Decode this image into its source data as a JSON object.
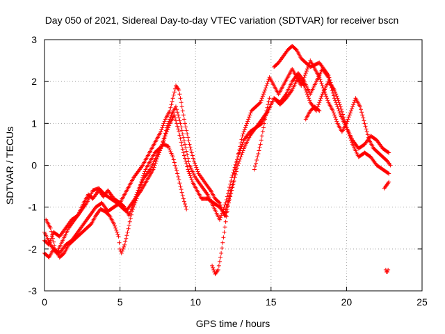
{
  "chart_data": {
    "type": "scatter",
    "title": "Day 050 of 2021, Sidereal Day-to-day VTEC variation (SDTVAR) for receiver bscn",
    "xlabel": "GPS time / hours",
    "ylabel": "SDTVAR / TECUs",
    "xlim": [
      0,
      25
    ],
    "ylim": [
      -3,
      3
    ],
    "xticks": [
      0,
      5,
      10,
      15,
      20,
      25
    ],
    "yticks": [
      -3,
      -2,
      -1,
      0,
      1,
      2,
      3
    ],
    "grid": true,
    "marker": "+",
    "color": "#ff0000",
    "traces": [
      {
        "x": [
          0.0,
          0.3,
          0.6,
          1.0,
          1.4,
          1.8,
          2.2,
          2.6,
          2.9,
          3.2,
          3.6,
          3.9,
          4.2,
          4.6,
          5.0,
          5.3,
          5.6,
          5.9,
          6.2,
          6.5,
          6.8,
          7.1,
          7.4,
          7.7,
          8.0,
          8.3,
          8.5,
          8.7,
          8.9,
          9.1,
          9.3,
          9.6,
          9.9,
          10.2,
          10.6,
          11.0,
          11.3,
          11.6,
          11.9,
          12.2,
          12.5,
          12.8,
          13.1,
          13.4,
          13.7,
          14.0,
          14.3,
          14.6,
          14.9,
          15.2,
          15.5,
          15.8,
          16.1,
          16.4,
          16.7,
          17.0,
          17.3,
          17.6,
          17.9,
          18.2,
          18.5,
          18.8,
          19.1,
          19.4,
          19.7,
          20.0,
          20.3,
          20.6,
          20.9,
          21.2,
          21.5,
          21.8,
          22.1,
          22.4,
          22.7,
          22.9
        ],
        "y": [
          -1.8,
          -1.9,
          -1.6,
          -1.7,
          -1.5,
          -1.3,
          -1.2,
          -0.9,
          -0.7,
          -0.8,
          -0.6,
          -0.75,
          -0.6,
          -0.8,
          -0.9,
          -0.7,
          -0.5,
          -0.3,
          -0.15,
          0.0,
          0.2,
          0.4,
          0.6,
          0.8,
          1.1,
          1.3,
          1.6,
          1.9,
          1.8,
          1.4,
          1.0,
          0.5,
          0.1,
          -0.2,
          -0.4,
          -0.6,
          -0.8,
          -0.9,
          -1.2,
          -0.8,
          -0.4,
          0.2,
          0.7,
          1.0,
          1.3,
          1.4,
          1.5,
          1.8,
          2.1,
          1.9,
          1.7,
          1.9,
          2.1,
          2.3,
          2.1,
          1.9,
          2.2,
          2.5,
          2.3,
          2.1,
          1.8,
          1.5,
          1.3,
          1.0,
          0.8,
          1.0,
          1.3,
          1.6,
          1.4,
          1.0,
          0.6,
          0.4,
          0.3,
          0.2,
          0.1,
          0.0
        ]
      },
      {
        "x": [
          0.0,
          0.3,
          0.6,
          1.0,
          1.4,
          1.8,
          2.2,
          2.6,
          3.0,
          3.4,
          3.8,
          4.2,
          4.6,
          5.0,
          5.3,
          5.6,
          5.9,
          6.2,
          6.6,
          7.0,
          7.4,
          7.8,
          8.1,
          8.4,
          8.7,
          9.0,
          9.3,
          9.6,
          10.0,
          10.4,
          10.8,
          11.2,
          11.6,
          12.0,
          12.4,
          12.8,
          13.2,
          13.6,
          14.0,
          14.4,
          14.8,
          15.2,
          15.6,
          16.0,
          16.4,
          16.8,
          17.2,
          17.6,
          18.0,
          18.4,
          18.8,
          19.2,
          19.6,
          20.0,
          20.4,
          20.8,
          21.2,
          21.6,
          22.0,
          22.4,
          22.8
        ],
        "y": [
          -2.1,
          -2.2,
          -2.0,
          -2.1,
          -1.9,
          -1.8,
          -1.6,
          -1.4,
          -1.2,
          -1.0,
          -0.9,
          -1.1,
          -1.0,
          -0.9,
          -1.0,
          -1.2,
          -0.9,
          -0.6,
          -0.3,
          -0.1,
          0.2,
          0.5,
          0.9,
          1.2,
          1.4,
          1.0,
          0.5,
          0.0,
          -0.3,
          -0.5,
          -0.7,
          -1.0,
          -1.3,
          -0.9,
          -0.3,
          0.2,
          0.6,
          0.8,
          0.9,
          1.1,
          1.3,
          1.6,
          1.5,
          1.7,
          2.0,
          2.2,
          2.0,
          1.7,
          2.0,
          2.3,
          2.1,
          1.6,
          1.2,
          0.9,
          0.6,
          0.4,
          0.5,
          0.7,
          0.6,
          0.4,
          0.3
        ]
      },
      {
        "x": [
          0.0,
          0.4,
          0.8,
          1.2,
          1.6,
          2.0,
          2.4,
          2.8,
          3.2,
          3.6,
          4.0,
          4.4,
          4.8,
          5.1,
          5.4,
          5.7,
          6.0,
          6.4,
          6.8,
          7.2,
          7.6,
          8.0,
          8.3,
          8.6,
          8.9,
          9.2,
          9.5,
          9.8,
          10.1,
          10.4,
          10.8,
          11.2,
          11.6,
          12.0,
          12.4,
          12.8,
          13.2,
          13.6,
          14.0,
          14.4,
          14.8,
          15.2,
          15.6,
          16.0,
          16.4,
          16.8,
          17.2,
          17.6,
          18.0,
          18.4,
          18.8,
          19.2,
          19.6,
          20.0,
          20.4,
          20.8,
          21.2,
          21.6,
          22.0,
          22.4,
          22.8
        ],
        "y": [
          -1.6,
          -1.9,
          -2.1,
          -1.8,
          -1.5,
          -1.3,
          -1.1,
          -0.9,
          -0.6,
          -0.55,
          -0.7,
          -0.8,
          -0.9,
          -1.0,
          -1.1,
          -0.95,
          -0.8,
          -0.6,
          -0.35,
          -0.1,
          0.3,
          0.7,
          1.0,
          1.2,
          0.8,
          0.3,
          -0.1,
          -0.4,
          -0.6,
          -0.8,
          -0.8,
          -0.9,
          -1.0,
          -1.2,
          -0.6,
          0.0,
          0.4,
          0.7,
          0.9,
          1.0,
          1.3,
          1.6,
          1.45,
          1.6,
          1.8,
          2.1,
          1.9,
          1.5,
          1.3,
          1.7,
          2.0,
          1.8,
          1.4,
          0.9,
          0.5,
          0.2,
          0.3,
          0.2,
          0.0,
          -0.1,
          -0.2
        ]
      },
      {
        "x": [
          0.1,
          0.4,
          0.7,
          1.0,
          1.3,
          1.6,
          1.9,
          2.2,
          2.5,
          2.8,
          3.1,
          3.4,
          3.7,
          4.0,
          4.3,
          4.6,
          4.9,
          5.0,
          5.1,
          5.3,
          5.5,
          5.8,
          6.1,
          6.4,
          6.7,
          7.0,
          7.3,
          7.6,
          7.9,
          8.2,
          8.5,
          8.8,
          9.0,
          9.2,
          9.4
        ],
        "y": [
          -1.3,
          -1.5,
          -2.0,
          -2.2,
          -2.1,
          -1.9,
          -1.8,
          -1.7,
          -1.6,
          -1.5,
          -1.4,
          -1.2,
          -1.05,
          -1.1,
          -1.2,
          -1.4,
          -1.7,
          -2.0,
          -2.1,
          -1.9,
          -1.6,
          -1.1,
          -0.8,
          -0.4,
          -0.1,
          0.1,
          0.3,
          0.4,
          0.5,
          0.45,
          0.2,
          -0.2,
          -0.5,
          -0.8,
          -1.05
        ]
      },
      {
        "x": [
          11.1,
          11.3,
          11.5,
          11.7,
          11.9,
          12.1,
          12.3
        ],
        "y": [
          -2.4,
          -2.6,
          -2.5,
          -2.1,
          -1.6,
          -1.1,
          -0.6
        ]
      },
      {
        "x": [
          13.9,
          14.1,
          14.3,
          14.5,
          14.7,
          14.9
        ],
        "y": [
          -0.1,
          0.2,
          0.5,
          0.9,
          1.3,
          1.6
        ]
      },
      {
        "x": [
          15.2,
          15.5,
          15.8,
          16.1,
          16.4,
          16.7,
          17.0,
          17.3,
          17.6,
          17.9,
          18.2,
          18.5,
          18.8,
          19.1
        ],
        "y": [
          2.35,
          2.45,
          2.6,
          2.75,
          2.85,
          2.75,
          2.55,
          2.45,
          2.35,
          2.4,
          2.45,
          2.3,
          2.15,
          1.8
        ]
      },
      {
        "x": [
          17.3,
          17.6,
          17.9,
          18.2
        ],
        "y": [
          1.1,
          1.3,
          1.4,
          1.3
        ]
      },
      {
        "x": [
          22.5,
          22.6,
          22.7,
          22.8
        ],
        "y": [
          -0.55,
          -0.5,
          -0.45,
          -0.4
        ]
      },
      {
        "x": [
          22.6,
          22.65,
          22.7,
          22.75
        ],
        "y": [
          -2.5,
          -2.55,
          -2.55,
          -2.5
        ]
      }
    ]
  }
}
